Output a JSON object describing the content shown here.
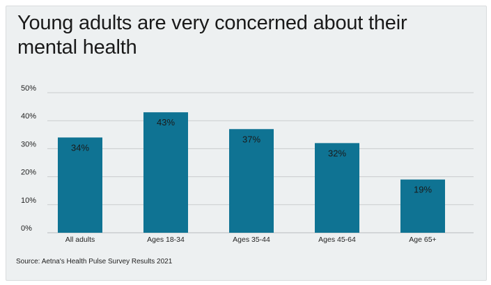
{
  "chart_data": {
    "type": "bar",
    "title": "Young adults are very concerned about their mental health",
    "categories": [
      "All adults",
      "Ages 18-34",
      "Ages 35-44",
      "Ages 45-64",
      "Age 65+"
    ],
    "values": [
      34,
      43,
      37,
      32,
      19
    ],
    "data_labels": [
      "34%",
      "43%",
      "37%",
      "32%",
      "19%"
    ],
    "ylim": [
      0,
      50
    ],
    "yticks": [
      0,
      10,
      20,
      30,
      40,
      50
    ],
    "ytick_labels": [
      "0%",
      "10%",
      "20%",
      "30%",
      "40%",
      "50%"
    ],
    "grid": true,
    "legend": "none",
    "bar_color": "#0f7393",
    "source": "Source: Aetna's Health Pulse Survey Results 2021"
  }
}
